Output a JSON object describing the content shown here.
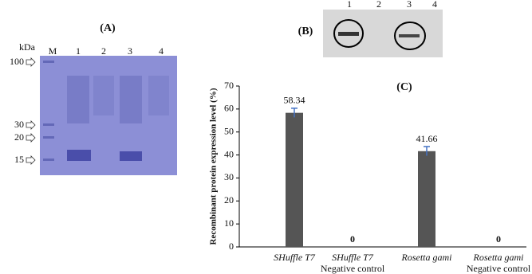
{
  "panel_a": {
    "label": "(A)",
    "unit": "kDa",
    "lanes": [
      "M",
      "1",
      "2",
      "3",
      "4"
    ],
    "markers": [
      100,
      30,
      20,
      15
    ]
  },
  "panel_b": {
    "label": "(B)",
    "lanes": [
      "1",
      "2",
      "3",
      "4"
    ]
  },
  "chart_data": {
    "type": "bar",
    "panel_label": "(C)",
    "y_label": "Recombinant protein expression level (%)",
    "categories": [
      "SHuffle T7",
      "SHuffle T7",
      "Rosetta gami",
      "Rosetta gami"
    ],
    "category_notes": [
      null,
      "Negative control",
      null,
      "Negative control"
    ],
    "values": [
      58.34,
      0,
      41.66,
      0
    ],
    "errors": [
      2,
      null,
      2,
      null
    ],
    "color": "#555555",
    "error_color": "#4472c4",
    "ylim": [
      0,
      70
    ],
    "yticks": [
      0,
      10,
      20,
      30,
      40,
      50,
      60,
      70
    ]
  }
}
